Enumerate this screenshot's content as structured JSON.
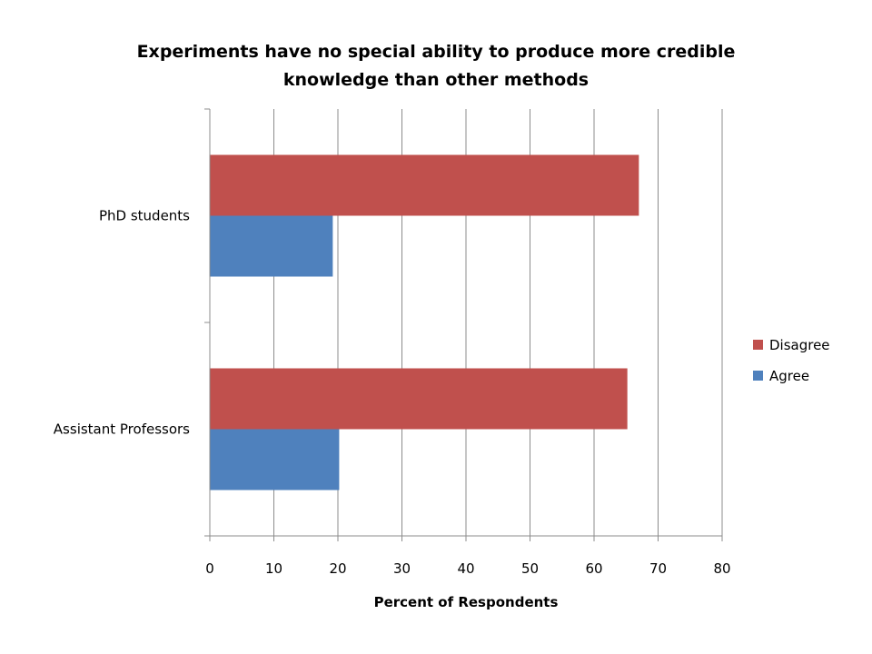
{
  "chart_data": {
    "type": "bar",
    "orientation": "horizontal",
    "title_lines": [
      "Experiments have no special ability to produce more credible",
      "knowledge than other methods"
    ],
    "categories": [
      "PhD students",
      "Assistant Professors"
    ],
    "series": [
      {
        "name": "Disagree",
        "color": "#c0504d",
        "values": [
          67,
          65.2
        ]
      },
      {
        "name": "Agree",
        "color": "#4f81bd",
        "values": [
          19.2,
          20.2
        ]
      }
    ],
    "legend_order": [
      "Disagree",
      "Agree"
    ],
    "legend_position": "right",
    "xlabel": "Percent of Respondents",
    "ylabel": "",
    "xlim": [
      0,
      80
    ],
    "xticks": [
      0,
      10,
      20,
      30,
      40,
      50,
      60,
      70,
      80
    ],
    "grid": "vertical"
  }
}
